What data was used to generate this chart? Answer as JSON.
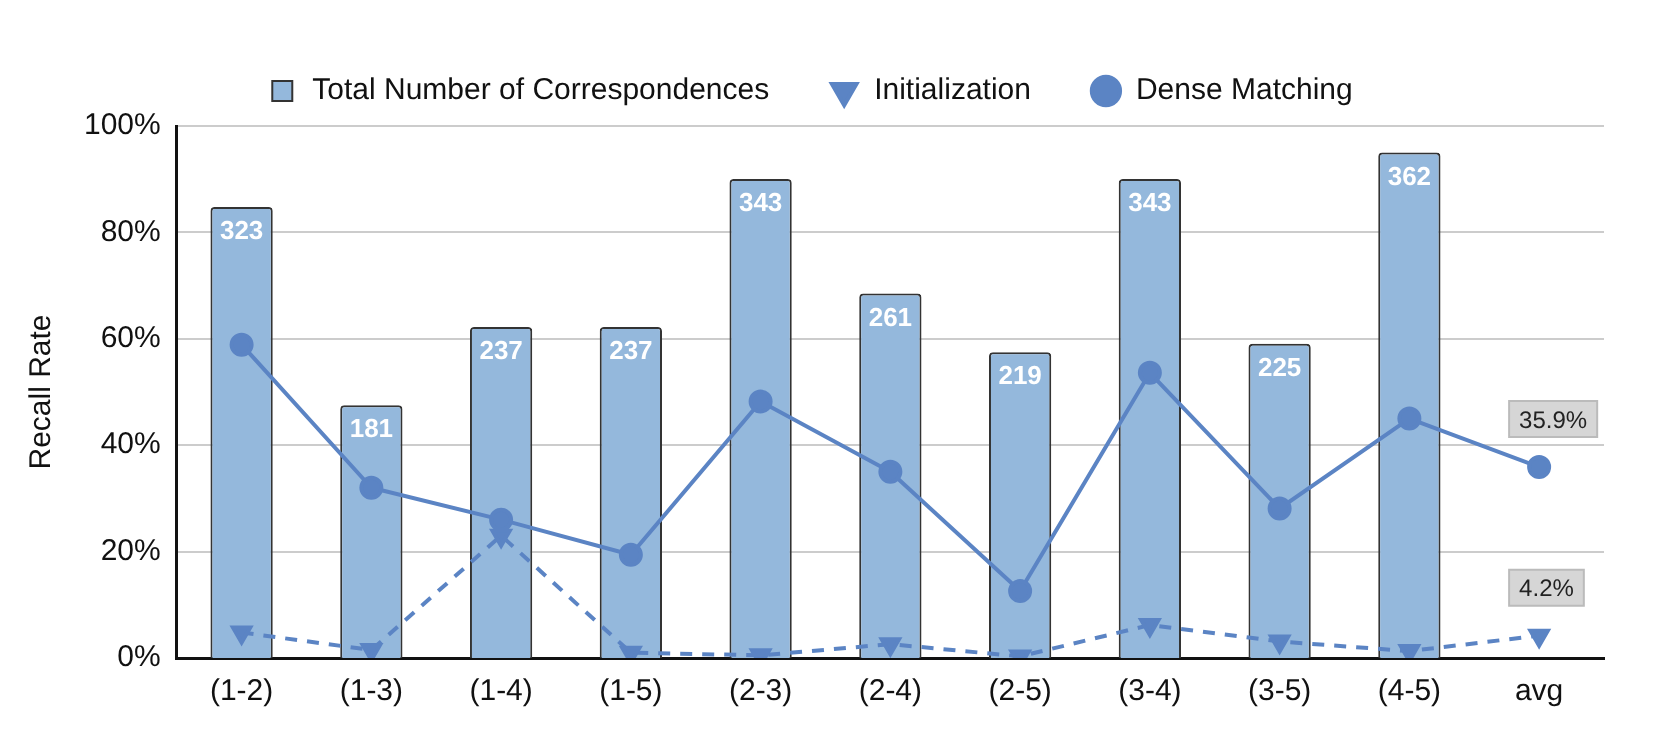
{
  "chart_data": {
    "type": "bar",
    "categories": [
      "(1-2)",
      "(1-3)",
      "(1-4)",
      "(1-5)",
      "(2-3)",
      "(2-4)",
      "(2-5)",
      "(3-4)",
      "(3-5)",
      "(4-5)",
      "avg"
    ],
    "ylabel": "Recall Rate",
    "ylim": [
      0,
      100
    ],
    "yticks": [
      {
        "value": 0,
        "label": "0%"
      },
      {
        "value": 20,
        "label": "20%"
      },
      {
        "value": 40,
        "label": "40%"
      },
      {
        "value": 60,
        "label": "60%"
      },
      {
        "value": 80,
        "label": "80%"
      },
      {
        "value": 100,
        "label": "100%"
      }
    ],
    "y2lim": [
      0,
      381
    ],
    "grid": "y",
    "legend": "top",
    "series": [
      {
        "name": "Total Number of Correspondences",
        "axis": "y2",
        "color": "#94b8dc",
        "data_labels": true,
        "values": [
          323,
          181,
          237,
          237,
          343,
          261,
          219,
          343,
          225,
          362,
          null
        ]
      },
      {
        "name": "Initialization",
        "type": "line",
        "color": "#5b84c4",
        "marker": "triangle",
        "line_style": "dashed",
        "values": [
          4.8,
          1.5,
          23,
          1,
          0.5,
          2.6,
          0.3,
          6.2,
          3.1,
          1.3,
          4.2
        ],
        "value_labels": [
          null,
          null,
          null,
          null,
          null,
          null,
          null,
          null,
          null,
          null,
          "4.2%"
        ]
      },
      {
        "name": "Dense Matching",
        "type": "line",
        "color": "#5b84c4",
        "marker": "circle",
        "line_style": "solid",
        "values": [
          58.9,
          32.0,
          26.0,
          19.4,
          48.2,
          35.0,
          12.6,
          53.6,
          28.1,
          45.0,
          35.9
        ],
        "value_labels": [
          null,
          null,
          null,
          null,
          null,
          null,
          null,
          null,
          null,
          null,
          "35.9%"
        ]
      }
    ]
  }
}
